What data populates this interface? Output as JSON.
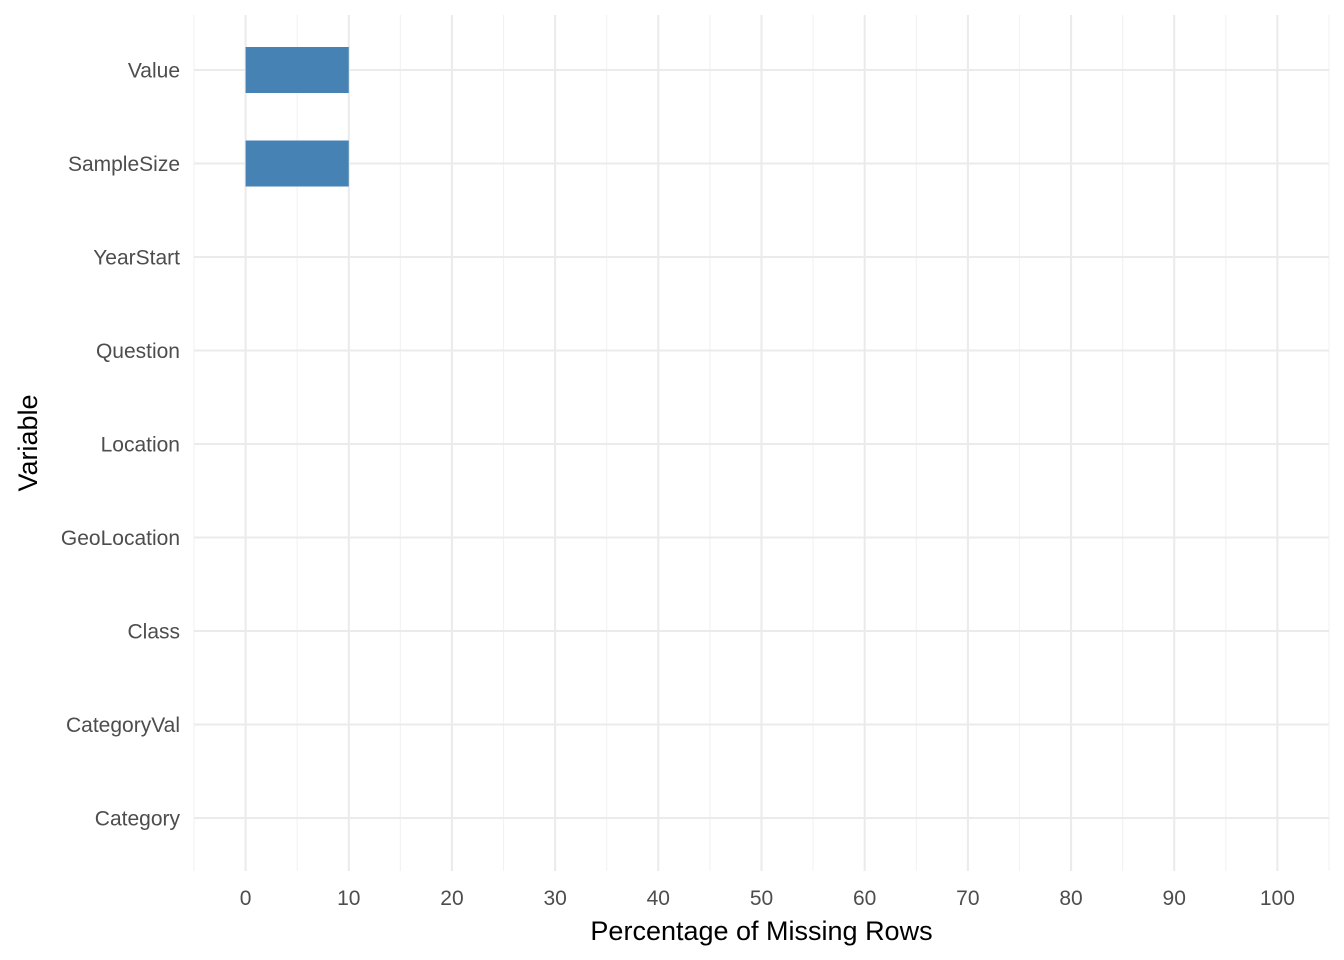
{
  "chart_data": {
    "type": "bar",
    "orientation": "horizontal",
    "xlabel": "Percentage of Missing Rows",
    "ylabel": "Variable",
    "xlim": [
      -5,
      105
    ],
    "x_ticks": [
      0,
      10,
      20,
      30,
      40,
      50,
      60,
      70,
      80,
      90,
      100
    ],
    "categories": [
      "Value",
      "SampleSize",
      "YearStart",
      "Question",
      "Location",
      "GeoLocation",
      "Class",
      "CategoryVal",
      "Category"
    ],
    "values": [
      10,
      10,
      0,
      0,
      0,
      0,
      0,
      0,
      0
    ],
    "bar_color": "#4682b4",
    "grid": true,
    "legend": "none"
  }
}
